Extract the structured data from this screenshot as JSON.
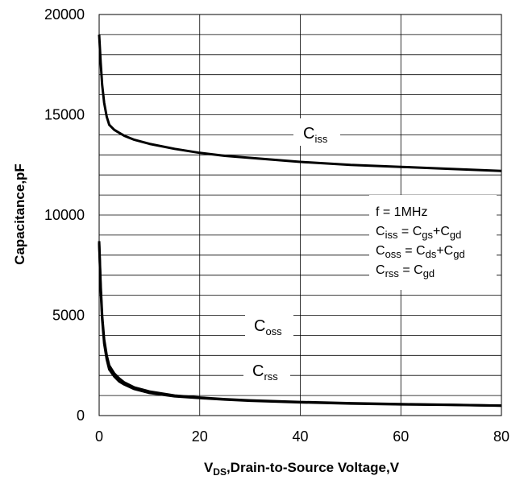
{
  "chart_data": {
    "type": "line",
    "title": "",
    "xlabel": {
      "main": "V",
      "sub": "DS",
      "rest": ",Drain-to-Source Voltage,V"
    },
    "ylabel": "Capacitance,pF",
    "xlim": [
      0,
      80
    ],
    "ylim": [
      0,
      20000
    ],
    "x_ticks": [
      "0",
      "20",
      "40",
      "60",
      "80"
    ],
    "y_ticks": [
      "0",
      "5000",
      "10000",
      "15000",
      "20000"
    ],
    "grid": true,
    "series": [
      {
        "name": "Ciss",
        "label": {
          "main": "C",
          "sub": "iss"
        },
        "x": [
          0,
          0.3,
          0.6,
          1,
          1.5,
          2,
          3,
          4,
          5,
          7,
          10,
          15,
          20,
          25,
          30,
          40,
          50,
          60,
          70,
          80
        ],
        "y": [
          19000,
          17600,
          16500,
          15600,
          14900,
          14500,
          14250,
          14100,
          13950,
          13750,
          13550,
          13300,
          13100,
          12950,
          12850,
          12650,
          12500,
          12400,
          12300,
          12200
        ]
      },
      {
        "name": "Coss",
        "label": {
          "main": "C",
          "sub": "oss"
        },
        "x": [
          0,
          0.3,
          0.6,
          1,
          1.5,
          2,
          3,
          4,
          5,
          7,
          10,
          15,
          20,
          25,
          30,
          40,
          50,
          60,
          70,
          80
        ],
        "y": [
          8700,
          6500,
          5000,
          3800,
          3000,
          2500,
          2100,
          1850,
          1650,
          1400,
          1200,
          1000,
          900,
          820,
          760,
          680,
          620,
          570,
          540,
          500
        ]
      },
      {
        "name": "Crss",
        "label": {
          "main": "C",
          "sub": "rss"
        },
        "x": [
          0,
          0.3,
          0.6,
          1,
          1.5,
          2,
          3,
          4,
          5,
          7,
          10,
          15,
          20,
          25,
          30,
          40,
          50,
          60,
          70,
          80
        ],
        "y": [
          8600,
          6300,
          4800,
          3600,
          2800,
          2300,
          1950,
          1700,
          1550,
          1320,
          1130,
          960,
          870,
          800,
          740,
          660,
          600,
          560,
          530,
          490
        ]
      }
    ],
    "legend_box": {
      "lines": [
        {
          "parts": [
            {
              "t": "f = 1MHz"
            }
          ]
        },
        {
          "parts": [
            {
              "t": "C"
            },
            {
              "t": "iss",
              "sub": true
            },
            {
              "t": " = C"
            },
            {
              "t": "gs",
              "sub": true
            },
            {
              "t": "+C"
            },
            {
              "t": "gd",
              "sub": true
            }
          ]
        },
        {
          "parts": [
            {
              "t": "C"
            },
            {
              "t": "oss",
              "sub": true
            },
            {
              "t": " = C"
            },
            {
              "t": "ds",
              "sub": true
            },
            {
              "t": "+C"
            },
            {
              "t": "gd",
              "sub": true
            }
          ]
        },
        {
          "parts": [
            {
              "t": "C"
            },
            {
              "t": "rss",
              "sub": true
            },
            {
              "t": " = C"
            },
            {
              "t": "gd",
              "sub": true
            }
          ]
        }
      ]
    },
    "line_color": "#000000",
    "grid_color": "#000000",
    "background": "#ffffff"
  }
}
